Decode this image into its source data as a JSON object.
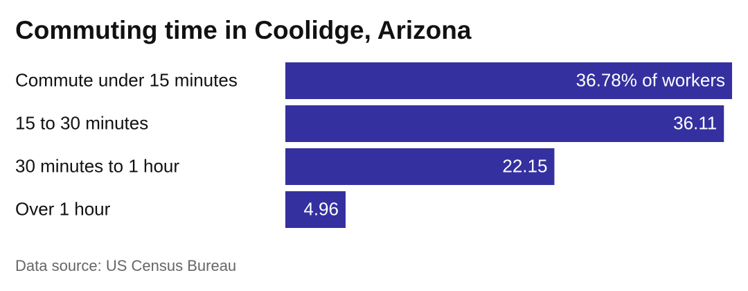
{
  "chart_data": {
    "type": "bar",
    "orientation": "horizontal",
    "title": "Commuting time in Coolidge, Arizona",
    "categories": [
      "Commute under 15 minutes",
      "15 to 30 minutes",
      "30 minutes to 1 hour",
      "Over 1 hour"
    ],
    "values": [
      36.78,
      36.11,
      22.15,
      4.96
    ],
    "value_labels": [
      "36.78% of workers",
      "36.11",
      "22.15",
      "4.96"
    ],
    "color": "#3430a0",
    "source": "Data source: US Census Bureau"
  }
}
